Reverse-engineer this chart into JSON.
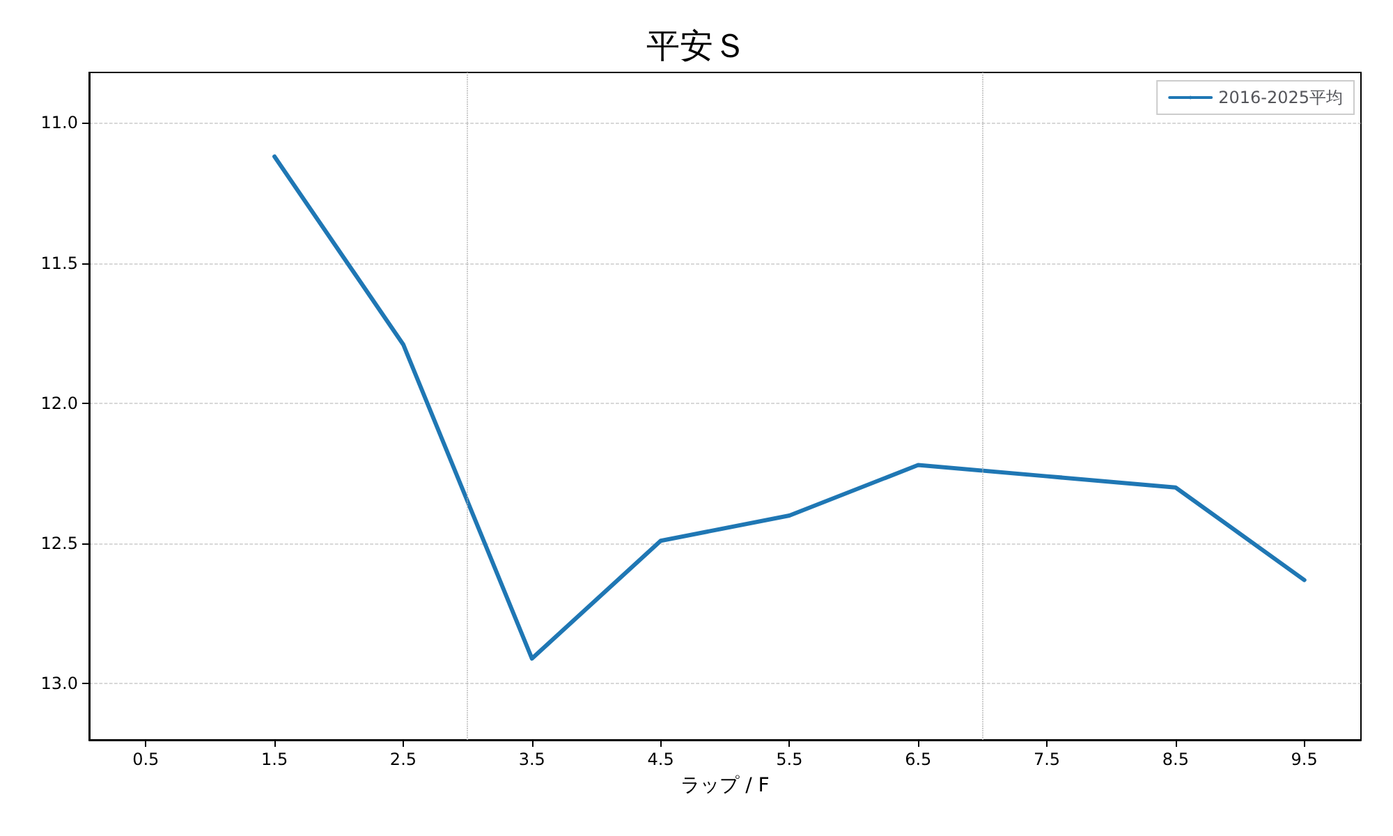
{
  "chart_data": {
    "type": "line",
    "title": "平安Ｓ",
    "xlabel": "ラップ / F",
    "x": [
      1.5,
      2.5,
      3.5,
      4.5,
      5.5,
      6.5,
      7.5,
      8.5,
      9.5
    ],
    "series": [
      {
        "name": "2016-2025平均",
        "color": "#1f77b4",
        "values": [
          11.12,
          11.79,
          12.91,
          12.49,
          12.4,
          12.22,
          12.26,
          12.3,
          12.63
        ]
      }
    ],
    "xlim": [
      0.06,
      9.94
    ],
    "xticks": [
      0.5,
      1.5,
      2.5,
      3.5,
      4.5,
      5.5,
      6.5,
      7.5,
      8.5,
      9.5
    ],
    "ylim": [
      13.2,
      10.82
    ],
    "yticks": [
      {
        "value": 11,
        "label": "11.0"
      },
      11.5,
      {
        "value": 12,
        "label": "12.0"
      },
      12.5,
      {
        "value": 13,
        "label": "13.0"
      }
    ],
    "ref_lines": [
      {
        "axis": "x",
        "value": 3,
        "color": "#b0b0b0",
        "line_style": "dotted"
      },
      {
        "axis": "x",
        "value": 7,
        "color": "#b0b0b0",
        "line_style": "dotted"
      }
    ],
    "grid": "y",
    "legend": "top right",
    "marker": "none",
    "line_style": "solid"
  }
}
